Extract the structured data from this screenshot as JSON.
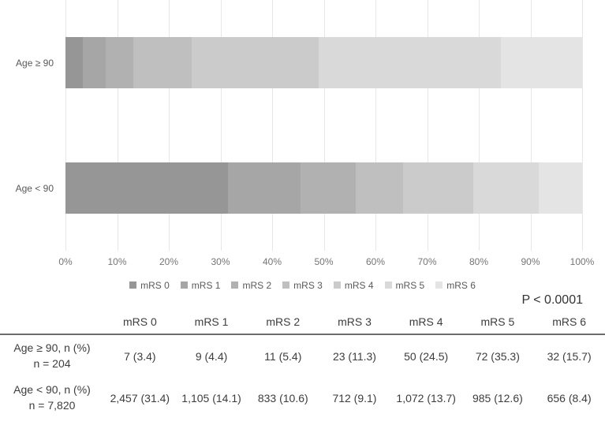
{
  "chart_data": {
    "type": "bar",
    "orientation": "horizontal",
    "stacked": true,
    "categories": [
      "Age ≥ 90",
      "Age < 90"
    ],
    "series": [
      {
        "name": "mRS 0",
        "color": "#969696",
        "values": [
          3.4,
          31.4
        ]
      },
      {
        "name": "mRS 1",
        "color": "#a6a6a6",
        "values": [
          4.4,
          14.1
        ]
      },
      {
        "name": "mRS 2",
        "color": "#b1b1b1",
        "values": [
          5.4,
          10.6
        ]
      },
      {
        "name": "mRS 3",
        "color": "#bfbfbf",
        "values": [
          11.3,
          9.1
        ]
      },
      {
        "name": "mRS 4",
        "color": "#cbcbcb",
        "values": [
          24.5,
          13.7
        ]
      },
      {
        "name": "mRS 5",
        "color": "#d9d9d9",
        "values": [
          35.3,
          12.6
        ]
      },
      {
        "name": "mRS 6",
        "color": "#e4e4e4",
        "values": [
          15.7,
          8.4
        ]
      }
    ],
    "x_ticks": [
      "0%",
      "10%",
      "20%",
      "30%",
      "40%",
      "50%",
      "60%",
      "70%",
      "80%",
      "90%",
      "100%"
    ],
    "xlim": [
      0,
      100
    ],
    "grid": true,
    "legend_position": "bottom"
  },
  "annotation": {
    "p_value": "P < 0.0001"
  },
  "table": {
    "headers": [
      "",
      "mRS 0",
      "mRS 1",
      "mRS 2",
      "mRS 3",
      "mRS 4",
      "mRS 5",
      "mRS 6"
    ],
    "rows": [
      {
        "label_line1": "Age ≥ 90, n (%)",
        "label_line2": "n = 204",
        "cells": [
          "7 (3.4)",
          "9 (4.4)",
          "11 (5.4)",
          "23 (11.3)",
          "50 (24.5)",
          "72 (35.3)",
          "32 (15.7)"
        ]
      },
      {
        "label_line1": "Age < 90, n (%)",
        "label_line2": "n = 7,820",
        "cells": [
          "2,457 (31.4)",
          "1,105 (14.1)",
          "833 (10.6)",
          "712 (9.1)",
          "1,072 (13.7)",
          "985 (12.6)",
          "656 (8.4)"
        ]
      }
    ]
  }
}
